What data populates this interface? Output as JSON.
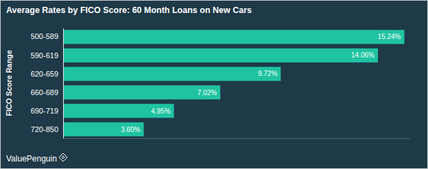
{
  "chart_data": {
    "type": "bar",
    "orientation": "horizontal",
    "title": "Average Rates by FICO Score: 60 Month Loans on New Cars",
    "ylabel": "FICO Score Range",
    "categories": [
      "500-589",
      "590-619",
      "620-659",
      "660-689",
      "690-719",
      "720-850"
    ],
    "values": [
      15.24,
      14.06,
      9.72,
      7.02,
      4.95,
      3.6
    ],
    "value_labels": [
      "15.24%",
      "14.06%",
      "9.72%",
      "7.02%",
      "4.95%",
      "3.60%"
    ],
    "data_labels": true,
    "color": "#1fc3a1",
    "xlim": [
      0,
      15.5
    ],
    "tick_labels": "y",
    "grid": false,
    "annotations": [
      "ValuePenguin"
    ]
  }
}
